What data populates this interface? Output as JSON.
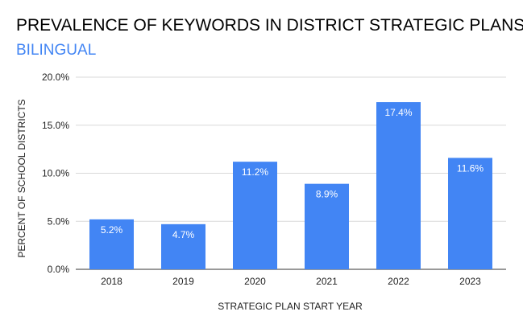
{
  "chart_data": {
    "type": "bar",
    "title": "PREVALENCE OF KEYWORDS IN DISTRICT STRATEGIC PLANS",
    "subtitle": "BILINGUAL",
    "xlabel": "STRATEGIC PLAN START YEAR",
    "ylabel": "PERCENT OF SCHOOL DISTRICTS",
    "categories": [
      "2018",
      "2019",
      "2020",
      "2021",
      "2022",
      "2023"
    ],
    "values": [
      5.2,
      4.7,
      11.2,
      8.9,
      17.4,
      11.6
    ],
    "data_labels": [
      "5.2%",
      "4.7%",
      "11.2%",
      "8.9%",
      "17.4%",
      "11.6%"
    ],
    "ylim": [
      0,
      20
    ],
    "yticks": [
      0,
      5,
      10,
      15,
      20
    ],
    "ytick_labels": [
      "0.0%",
      "5.0%",
      "10.0%",
      "15.0%",
      "20.0%"
    ],
    "grid": true,
    "bar_color": "#4285f4",
    "subtitle_color": "#4285f4"
  }
}
